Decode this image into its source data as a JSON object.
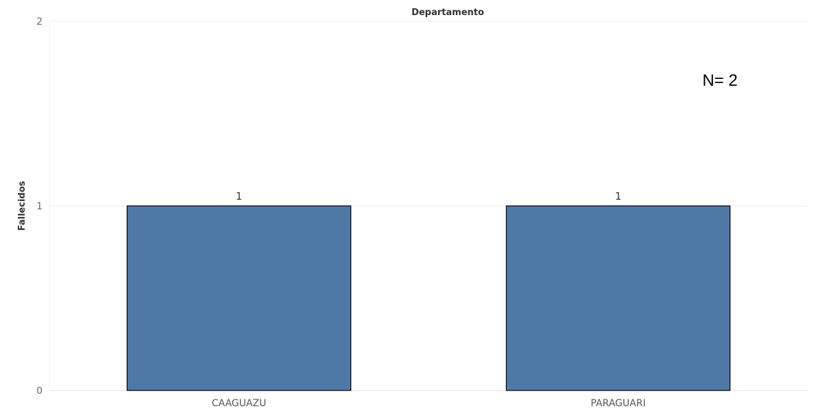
{
  "chart_data": {
    "type": "bar",
    "title": "Departamento",
    "xlabel": "",
    "ylabel": "Fallecidos",
    "categories": [
      "CAAGUAZU",
      "PARAGUARI"
    ],
    "values": [
      1,
      1
    ],
    "data_labels": [
      "1",
      "1"
    ],
    "ylim": [
      0,
      2
    ],
    "yticks": [
      "0",
      "1",
      "2"
    ],
    "grid": true,
    "bar_color": "#4e79a7",
    "bar_outline_color": "#000000",
    "annotation": "N= 2"
  }
}
